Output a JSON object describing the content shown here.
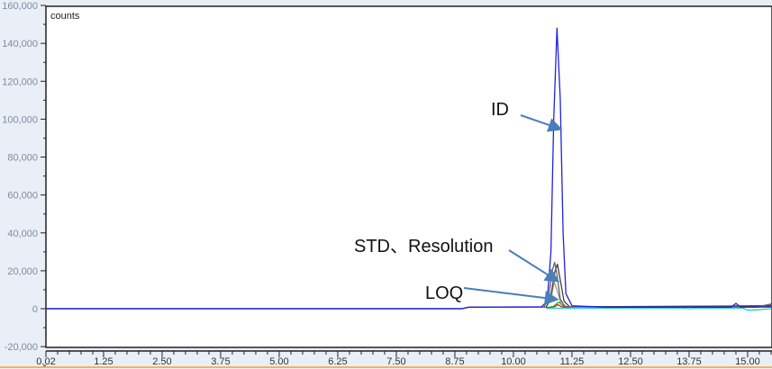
{
  "chart_data": {
    "type": "line",
    "ylabel": "counts",
    "xlim": [
      0.02,
      15.5
    ],
    "ylim": [
      -20000,
      160000
    ],
    "x_ticks": [
      "0.02",
      "1.25",
      "2.50",
      "3.75",
      "5.00",
      "6.25",
      "7.50",
      "8.75",
      "10.00",
      "11.25",
      "12.50",
      "13.75",
      "15.00"
    ],
    "y_ticks": [
      "160,000",
      "140,000",
      "120,000",
      "100,000",
      "80,000",
      "60,000",
      "40,000",
      "20,000",
      "0",
      "-20,000"
    ],
    "grid": false,
    "series": [
      {
        "color": "#2222dd",
        "points": [
          [
            0.02,
            0
          ],
          [
            8.9,
            0
          ],
          [
            9.05,
            800
          ],
          [
            10.6,
            1000
          ],
          [
            10.72,
            4000
          ],
          [
            10.8,
            30000
          ],
          [
            10.86,
            100000
          ],
          [
            10.93,
            148000
          ],
          [
            11.0,
            110000
          ],
          [
            11.06,
            40000
          ],
          [
            11.12,
            8000
          ],
          [
            11.25,
            1500
          ],
          [
            12.0,
            800
          ],
          [
            14.65,
            800
          ],
          [
            14.75,
            2800
          ],
          [
            14.85,
            800
          ],
          [
            15.5,
            900
          ]
        ]
      },
      {
        "color": "#666666",
        "points": [
          [
            0.02,
            0
          ],
          [
            8.9,
            0
          ],
          [
            9.05,
            800
          ],
          [
            10.65,
            900
          ],
          [
            10.75,
            6000
          ],
          [
            10.83,
            20000
          ],
          [
            10.88,
            24500
          ],
          [
            10.93,
            18000
          ],
          [
            11.0,
            5000
          ],
          [
            11.1,
            1200
          ],
          [
            12.0,
            800
          ],
          [
            15.2,
            900
          ],
          [
            15.5,
            2500
          ]
        ]
      },
      {
        "color": "#444444",
        "points": [
          [
            0.02,
            0
          ],
          [
            8.9,
            0
          ],
          [
            9.05,
            800
          ],
          [
            10.7,
            900
          ],
          [
            10.8,
            7000
          ],
          [
            10.88,
            19000
          ],
          [
            10.94,
            23500
          ],
          [
            11.0,
            15000
          ],
          [
            11.08,
            4000
          ],
          [
            11.2,
            1000
          ],
          [
            15.5,
            1500
          ]
        ]
      },
      {
        "color": "#999999",
        "points": [
          [
            0.02,
            0
          ],
          [
            8.9,
            0
          ],
          [
            9.05,
            800
          ],
          [
            10.7,
            900
          ],
          [
            10.8,
            5000
          ],
          [
            10.87,
            14000
          ],
          [
            10.93,
            10000
          ],
          [
            11.02,
            2500
          ],
          [
            11.15,
            900
          ],
          [
            15.5,
            1200
          ]
        ]
      },
      {
        "color": "#22aa22",
        "points": [
          [
            10.7,
            500
          ],
          [
            10.85,
            1200
          ],
          [
            10.97,
            3500
          ],
          [
            11.05,
            1500
          ],
          [
            11.2,
            700
          ]
        ]
      },
      {
        "color": "#dd2222",
        "points": [
          [
            10.7,
            500
          ],
          [
            10.88,
            1000
          ],
          [
            10.95,
            2200
          ],
          [
            11.02,
            1000
          ],
          [
            11.2,
            600
          ]
        ]
      },
      {
        "color": "#dd22dd",
        "points": [
          [
            12.2,
            900
          ],
          [
            13.5,
            1200
          ],
          [
            14.5,
            1300
          ],
          [
            15.2,
            1500
          ],
          [
            15.5,
            1800
          ]
        ]
      },
      {
        "color": "#22cccc",
        "points": [
          [
            10.7,
            200
          ],
          [
            11.2,
            300
          ],
          [
            13.6,
            300
          ],
          [
            13.75,
            0
          ],
          [
            13.9,
            300
          ],
          [
            14.9,
            300
          ],
          [
            15.0,
            -800
          ],
          [
            15.2,
            -600
          ],
          [
            15.5,
            0
          ]
        ]
      }
    ],
    "annotations": [
      {
        "text": "ID",
        "target": [
          10.98,
          95000
        ]
      },
      {
        "text": "STD、Resolution",
        "target": [
          10.92,
          15000
        ]
      },
      {
        "text": "LOQ",
        "target": [
          10.9,
          5000
        ]
      }
    ]
  }
}
